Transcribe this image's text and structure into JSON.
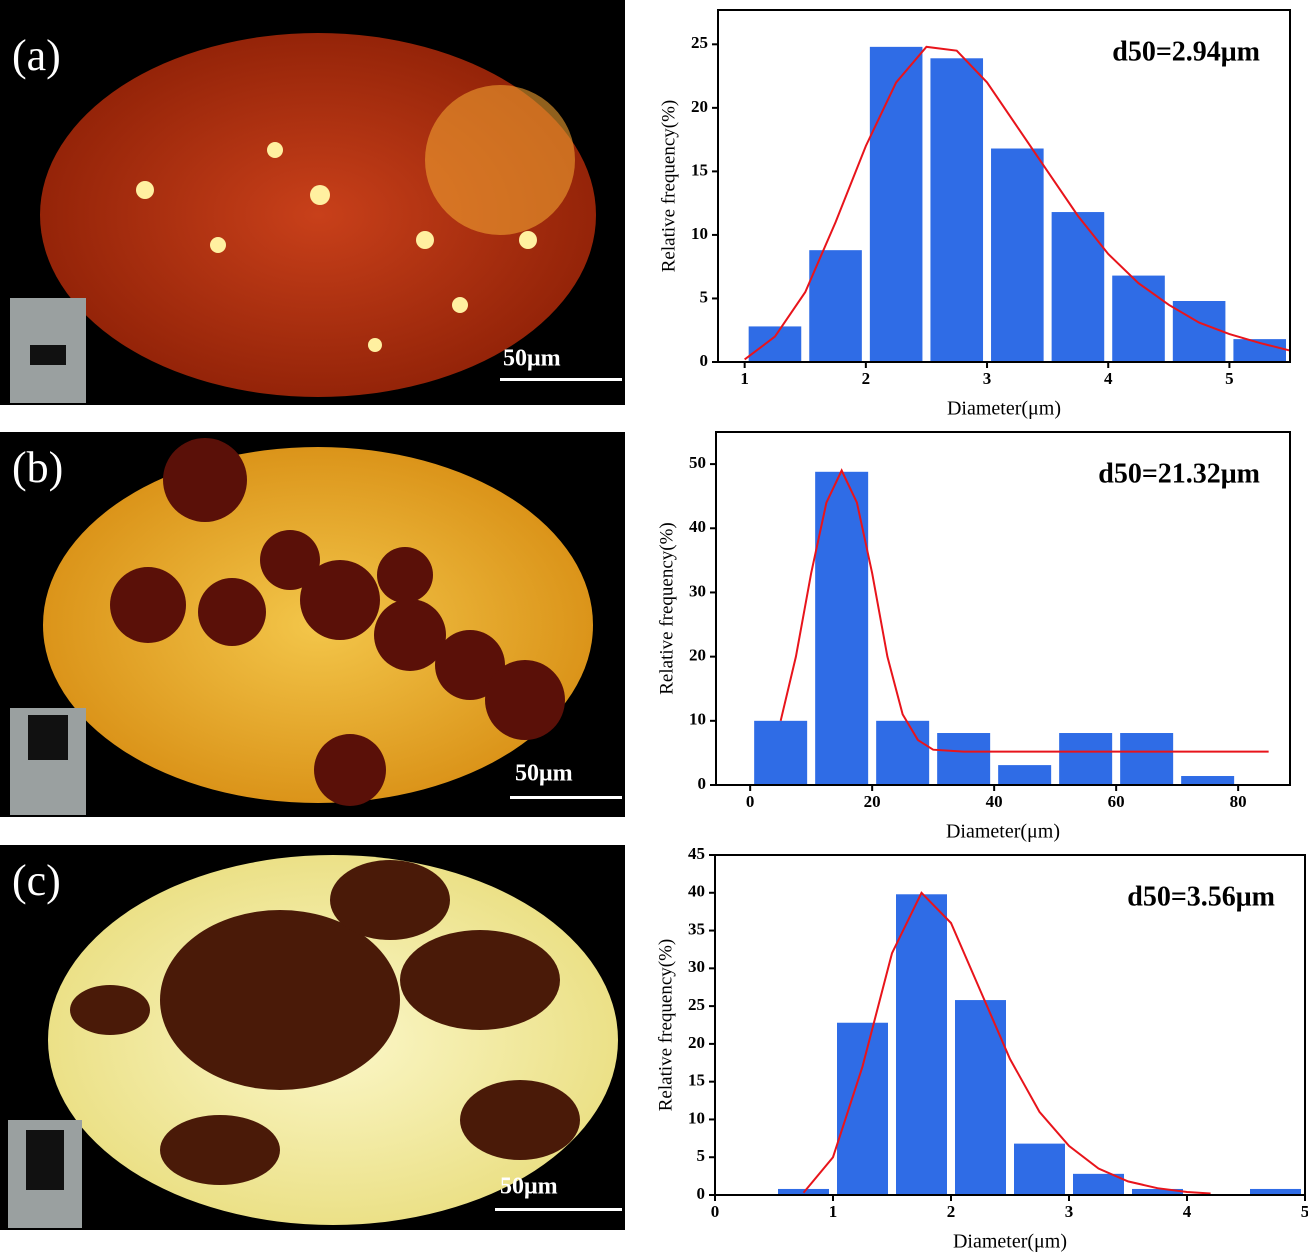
{
  "panels": [
    {
      "label": "(a)",
      "scale_bar": "50μm"
    },
    {
      "label": "(b)",
      "scale_bar": "50μm"
    },
    {
      "label": "(c)",
      "scale_bar": "50μm"
    }
  ],
  "chart_data": [
    {
      "type": "histogram",
      "annotation": "d50=2.94μm",
      "xlabel": "Diameter(μm)",
      "ylabel": "Relative frequency(%)",
      "bins": [
        1.0,
        1.5,
        2.0,
        2.5,
        3.0,
        3.5,
        4.0,
        4.5,
        5.0,
        5.5
      ],
      "values": [
        2.8,
        8.8,
        24.8,
        23.9,
        16.8,
        11.8,
        6.8,
        4.8,
        1.8
      ],
      "color": "#2f6ce6",
      "fit": {
        "color": "#e8141b",
        "x": [
          1.0,
          1.25,
          1.5,
          1.75,
          2.0,
          2.25,
          2.5,
          2.75,
          3.0,
          3.25,
          3.5,
          3.75,
          4.0,
          4.25,
          4.5,
          4.75,
          5.0,
          5.25,
          5.5
        ],
        "values": [
          0.2,
          2,
          5.5,
          11,
          17,
          22,
          24.8,
          24.5,
          22,
          18.5,
          15,
          11.5,
          8.5,
          6.2,
          4.5,
          3.1,
          2.2,
          1.5,
          0.9
        ]
      },
      "xlim": [
        0.78,
        5.5
      ],
      "ylim": [
        0,
        27.7
      ],
      "xticks": [
        1,
        2,
        3,
        4,
        5
      ],
      "yticks": [
        0,
        5,
        10,
        15,
        20,
        25
      ]
    },
    {
      "type": "histogram",
      "annotation": "d50=21.32μm",
      "xlabel": "Diameter(μm)",
      "ylabel": "Relative frequency(%)",
      "bins": [
        0,
        10,
        20,
        30,
        40,
        50,
        60,
        70,
        80
      ],
      "values": [
        10,
        48.8,
        10,
        8.1,
        3.1,
        8.1,
        8.1,
        1.4
      ],
      "color": "#2f6ce6",
      "fit": {
        "color": "#e8141b",
        "x": [
          5,
          7.5,
          10,
          12.5,
          15,
          17.5,
          20,
          22.5,
          25,
          27.5,
          30,
          35,
          85
        ],
        "values": [
          10,
          20,
          33,
          44,
          49,
          44,
          33,
          20,
          11,
          7,
          5.5,
          5.2,
          5.2
        ]
      },
      "xlim": [
        -5.6,
        88.5
      ],
      "ylim": [
        0,
        55
      ],
      "xticks": [
        0,
        20,
        40,
        60,
        80
      ],
      "yticks": [
        0,
        10,
        20,
        30,
        40,
        50
      ]
    },
    {
      "type": "histogram",
      "annotation": "d50=3.56μm",
      "xlabel": "Diameter(μm)",
      "ylabel": "Relative frequency(%)",
      "bins": [
        0.5,
        1.0,
        1.5,
        2.0,
        2.5,
        3.0,
        3.5,
        4.0,
        4.5,
        5.0
      ],
      "values": [
        0.8,
        22.8,
        39.8,
        25.8,
        6.8,
        2.8,
        0.8,
        0,
        0.8
      ],
      "color": "#2f6ce6",
      "fit": {
        "color": "#e8141b",
        "x": [
          0.75,
          1.0,
          1.25,
          1.5,
          1.75,
          2.0,
          2.25,
          2.5,
          2.75,
          3.0,
          3.25,
          3.5,
          3.75,
          4.0,
          4.2
        ],
        "values": [
          0.3,
          5,
          17,
          32,
          40,
          36,
          27,
          18,
          11,
          6.5,
          3.5,
          1.8,
          0.9,
          0.4,
          0.2
        ]
      },
      "xlim": [
        0,
        5
      ],
      "ylim": [
        0,
        45
      ],
      "xticks": [
        0,
        1,
        2,
        3,
        4,
        5
      ],
      "yticks": [
        0,
        5,
        10,
        15,
        20,
        25,
        30,
        35,
        40,
        45
      ]
    }
  ]
}
